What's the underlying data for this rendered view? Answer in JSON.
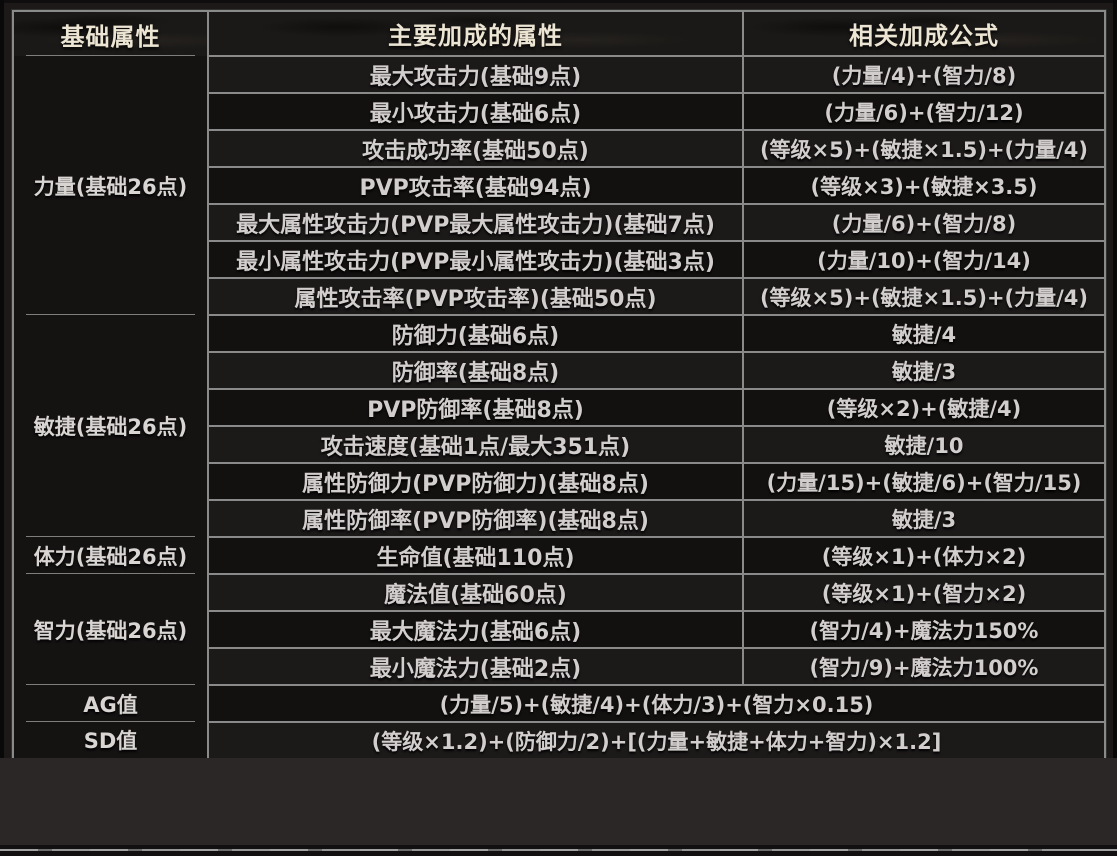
{
  "table": {
    "headers": [
      "基础属性",
      "主要加成的属性",
      "相关加成公式"
    ],
    "groups": [
      {
        "label": "力量(基础26点)",
        "rows": [
          {
            "attr": "最大攻击力(基础9点)",
            "formula": "(力量/4)+(智力/8)"
          },
          {
            "attr": "最小攻击力(基础6点)",
            "formula": "(力量/6)+(智力/12)"
          },
          {
            "attr": "攻击成功率(基础50点)",
            "formula": "(等级×5)+(敏捷×1.5)+(力量/4)"
          },
          {
            "attr": "PVP攻击率(基础94点)",
            "formula": "(等级×3)+(敏捷×3.5)"
          },
          {
            "attr": "最大属性攻击力(PVP最大属性攻击力)(基础7点)",
            "formula": "(力量/6)+(智力/8)"
          },
          {
            "attr": "最小属性攻击力(PVP最小属性攻击力)(基础3点)",
            "formula": "(力量/10)+(智力/14)"
          },
          {
            "attr": "属性攻击率(PVP攻击率)(基础50点)",
            "formula": "(等级×5)+(敏捷×1.5)+(力量/4)"
          }
        ]
      },
      {
        "label": "敏捷(基础26点)",
        "rows": [
          {
            "attr": "防御力(基础6点)",
            "formula": "敏捷/4"
          },
          {
            "attr": "防御率(基础8点)",
            "formula": "敏捷/3"
          },
          {
            "attr": "PVP防御率(基础8点)",
            "formula": "(等级×2)+(敏捷/4)"
          },
          {
            "attr": "攻击速度(基础1点/最大351点)",
            "formula": "敏捷/10"
          },
          {
            "attr": "属性防御力(PVP防御力)(基础8点)",
            "formula": "(力量/15)+(敏捷/6)+(智力/15)"
          },
          {
            "attr": "属性防御率(PVP防御率)(基础8点)",
            "formula": "敏捷/3"
          }
        ]
      },
      {
        "label": "体力(基础26点)",
        "rows": [
          {
            "attr": "生命值(基础110点)",
            "formula": "(等级×1)+(体力×2)"
          }
        ]
      },
      {
        "label": "智力(基础26点)",
        "rows": [
          {
            "attr": "魔法值(基础60点)",
            "formula": "(等级×1)+(智力×2)"
          },
          {
            "attr": "最大魔法力(基础6点)",
            "formula": "(智力/4)+魔法力150%"
          },
          {
            "attr": "最小魔法力(基础2点)",
            "formula": "(智力/9)+魔法力100%"
          }
        ]
      }
    ],
    "summary_rows": [
      {
        "label": "AG值",
        "formula": "(力量/5)+(敏捷/4)+(体力/3)+(智力×0.15)"
      },
      {
        "label": "SD值",
        "formula": "(等级×1.2)+(防御力/2)+[(力量+敏捷+体力+智力)×1.2]"
      }
    ]
  },
  "colors": {
    "header_text": "#ece5d3",
    "cell_text": "#d2cecd",
    "group_cell_bg": "#151212",
    "row_light": "#1c1919",
    "row_dark": "#131110",
    "border": "#8a8a8a",
    "panel_bg": "#1c1918",
    "lower_band_bg": "#2b2726",
    "bottom_strip_bg": "#121010"
  }
}
